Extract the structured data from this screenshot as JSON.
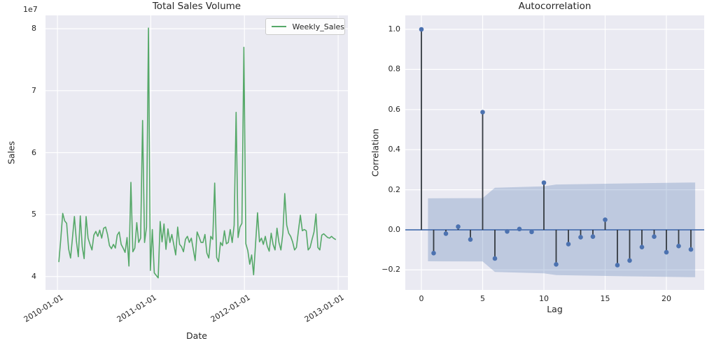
{
  "colors": {
    "figure_bg": "#ffffff",
    "axes_bg": "#eaeaf2",
    "grid": "#ffffff",
    "text": "#262626",
    "green_line": "#55a868",
    "blue": "#4c72b0",
    "stem": "#343a40",
    "band_fill": "rgba(76,114,176,0.28)",
    "legend_border": "#cccccc"
  },
  "chart_data": [
    {
      "type": "line",
      "title": "Total Sales Volume",
      "xlabel": "Date",
      "ylabel": "Sales",
      "y_offset_label": "1e7",
      "legend_label": "Weekly_Sales",
      "legend_position": "upper right",
      "grid": true,
      "series_name": "Weekly_Sales",
      "units": "1e7 (values below are in tens of millions)",
      "x_tick_labels": [
        "2010-01-01",
        "2011-01-01",
        "2012-01-01",
        "2013-01-01"
      ],
      "x_tick_positions_weeks": [
        -0.7,
        47.2,
        95.3,
        143.4
      ],
      "xlim_weeks": [
        -6.85,
        148.4
      ],
      "y_ticks": [
        4,
        5,
        6,
        7,
        8
      ],
      "ylim": [
        3.785,
        8.215
      ],
      "values": [
        4.24,
        4.6,
        5.02,
        4.9,
        4.86,
        4.45,
        4.3,
        4.62,
        4.97,
        4.58,
        4.32,
        4.98,
        4.48,
        4.29,
        4.97,
        4.62,
        4.52,
        4.43,
        4.67,
        4.73,
        4.65,
        4.75,
        4.62,
        4.78,
        4.8,
        4.68,
        4.5,
        4.45,
        4.52,
        4.46,
        4.67,
        4.72,
        4.52,
        4.46,
        4.39,
        4.63,
        4.17,
        5.52,
        4.4,
        4.46,
        4.87,
        4.55,
        4.62,
        6.52,
        4.55,
        4.8,
        8.01,
        4.1,
        4.76,
        4.06,
        4.02,
        3.98,
        4.89,
        4.56,
        4.85,
        4.44,
        4.77,
        4.55,
        4.68,
        4.52,
        4.35,
        4.8,
        4.52,
        4.48,
        4.4,
        4.6,
        4.65,
        4.55,
        4.62,
        4.44,
        4.26,
        4.72,
        4.64,
        4.55,
        4.55,
        4.68,
        4.38,
        4.3,
        4.65,
        4.6,
        5.51,
        4.31,
        4.24,
        4.55,
        4.5,
        4.74,
        4.53,
        4.55,
        4.76,
        4.55,
        4.83,
        6.65,
        4.63,
        4.8,
        4.86,
        7.7,
        4.53,
        4.42,
        4.2,
        4.35,
        4.03,
        4.53,
        5.03,
        4.56,
        4.62,
        4.52,
        4.65,
        4.49,
        4.41,
        4.7,
        4.52,
        4.43,
        4.78,
        4.55,
        4.43,
        4.7,
        5.34,
        4.83,
        4.7,
        4.65,
        4.56,
        4.43,
        4.47,
        4.74,
        4.99,
        4.74,
        4.76,
        4.74,
        4.43,
        4.47,
        4.6,
        4.72,
        5.01,
        4.47,
        4.43,
        4.67,
        4.69,
        4.66,
        4.63,
        4.62,
        4.65,
        4.62,
        4.6
      ]
    },
    {
      "type": "stem",
      "title": "Autocorrelation",
      "xlabel": "Lag",
      "ylabel": "Correlation",
      "grid": true,
      "x_ticks": [
        0,
        5,
        10,
        15,
        20
      ],
      "xlim": [
        -1.314,
        23.086
      ],
      "y_ticks": [
        -0.2,
        0.0,
        0.2,
        0.4,
        0.6,
        0.8,
        1.0
      ],
      "ylim": [
        -0.2997,
        1.0697
      ],
      "lags": [
        0,
        1,
        2,
        3,
        4,
        5,
        6,
        7,
        8,
        9,
        10,
        11,
        12,
        13,
        14,
        15,
        16,
        17,
        18,
        19,
        20,
        21,
        22
      ],
      "acf_values": [
        1.0,
        -0.116,
        -0.019,
        0.016,
        -0.048,
        0.587,
        -0.143,
        -0.008,
        0.004,
        -0.01,
        0.235,
        -0.172,
        -0.071,
        -0.037,
        -0.034,
        0.05,
        -0.176,
        -0.153,
        -0.086,
        -0.034,
        -0.112,
        -0.081,
        -0.098
      ],
      "conf_band_upper": [
        [
          0.54,
          0.157
        ],
        [
          5,
          0.158
        ],
        [
          6,
          0.21
        ],
        [
          10,
          0.217
        ],
        [
          11,
          0.226
        ],
        [
          16,
          0.231
        ],
        [
          22,
          0.236
        ],
        [
          22.35,
          0.236
        ]
      ],
      "zero_line": 0.0
    }
  ]
}
